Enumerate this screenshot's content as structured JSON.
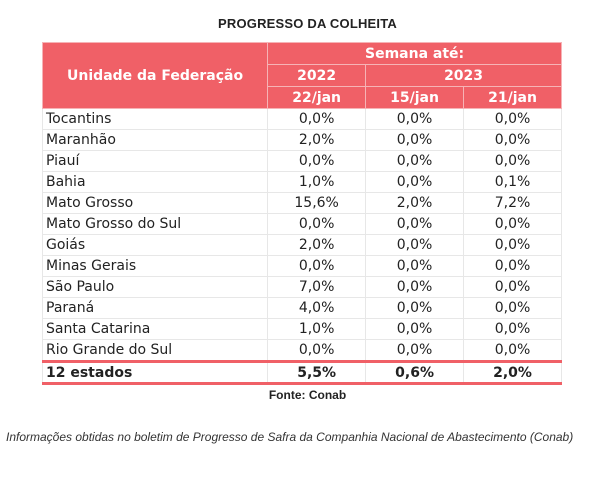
{
  "title": "PROGRESSO DA COLHEITA",
  "table": {
    "header": {
      "uf_label": "Unidade da Federação",
      "week_label": "Semana até:",
      "years": [
        "2022",
        "2023"
      ],
      "dates": [
        "22/jan",
        "15/jan",
        "21/jan"
      ]
    },
    "rows": [
      {
        "state": "Tocantins",
        "v2022": "0,0%",
        "v2023a": "0,0%",
        "v2023b": "0,0%"
      },
      {
        "state": "Maranhão",
        "v2022": "2,0%",
        "v2023a": "0,0%",
        "v2023b": "0,0%"
      },
      {
        "state": "Piauí",
        "v2022": "0,0%",
        "v2023a": "0,0%",
        "v2023b": "0,0%"
      },
      {
        "state": "Bahia",
        "v2022": "1,0%",
        "v2023a": "0,0%",
        "v2023b": "0,1%"
      },
      {
        "state": "Mato Grosso",
        "v2022": "15,6%",
        "v2023a": "2,0%",
        "v2023b": "7,2%"
      },
      {
        "state": "Mato Grosso do Sul",
        "v2022": "0,0%",
        "v2023a": "0,0%",
        "v2023b": "0,0%"
      },
      {
        "state": "Goiás",
        "v2022": "2,0%",
        "v2023a": "0,0%",
        "v2023b": "0,0%"
      },
      {
        "state": "Minas Gerais",
        "v2022": "0,0%",
        "v2023a": "0,0%",
        "v2023b": "0,0%"
      },
      {
        "state": "São Paulo",
        "v2022": "7,0%",
        "v2023a": "0,0%",
        "v2023b": "0,0%"
      },
      {
        "state": "Paraná",
        "v2022": "4,0%",
        "v2023a": "0,0%",
        "v2023b": "0,0%"
      },
      {
        "state": "Santa Catarina",
        "v2022": "1,0%",
        "v2023a": "0,0%",
        "v2023b": "0,0%"
      },
      {
        "state": "Rio Grande do Sul",
        "v2022": "0,0%",
        "v2023a": "0,0%",
        "v2023b": "0,0%"
      }
    ],
    "total": {
      "state": "12 estados",
      "v2022": "5,5%",
      "v2023a": "0,6%",
      "v2023b": "2,0%"
    }
  },
  "source": "Fonte: Conab",
  "note": "Informações obtidas no boletim de Progresso de Safra da Companhia Nacional de Abastecimento (Conab)",
  "colors": {
    "header_bg": "#f06067",
    "header_text": "#ffffff",
    "total_border": "#f06067"
  }
}
